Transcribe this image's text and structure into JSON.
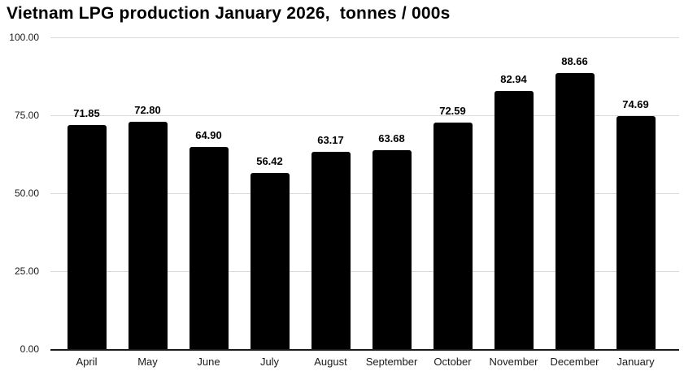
{
  "title": "Vietnam LPG production January 2026,  tonnes / 000s",
  "chart_data": {
    "type": "bar",
    "title": "Vietnam LPG production January 2026,  tonnes / 000s",
    "categories": [
      "April",
      "May",
      "June",
      "July",
      "August",
      "September",
      "October",
      "November",
      "December",
      "January"
    ],
    "values": [
      71.85,
      72.8,
      64.9,
      56.42,
      63.17,
      63.68,
      72.59,
      82.94,
      88.66,
      74.69
    ],
    "value_labels": [
      "71.85",
      "72.80",
      "64.90",
      "56.42",
      "63.17",
      "63.68",
      "72.59",
      "82.94",
      "88.66",
      "74.69"
    ],
    "xlabel": "",
    "ylabel": "",
    "ylim": [
      0,
      100
    ],
    "yticks": [
      {
        "value": 100,
        "label": "100.00"
      },
      {
        "value": 75,
        "label": "75.00"
      },
      {
        "value": 50,
        "label": "50.00"
      },
      {
        "value": 25,
        "label": "25.00"
      },
      {
        "value": 0,
        "label": "0.00"
      }
    ],
    "grid": true,
    "legend": false,
    "colors": {
      "bar": "#000000",
      "gridline": "#d9d9d9",
      "axis_line": "#1a1a1a",
      "background": "#ffffff",
      "text": "#000000"
    }
  }
}
